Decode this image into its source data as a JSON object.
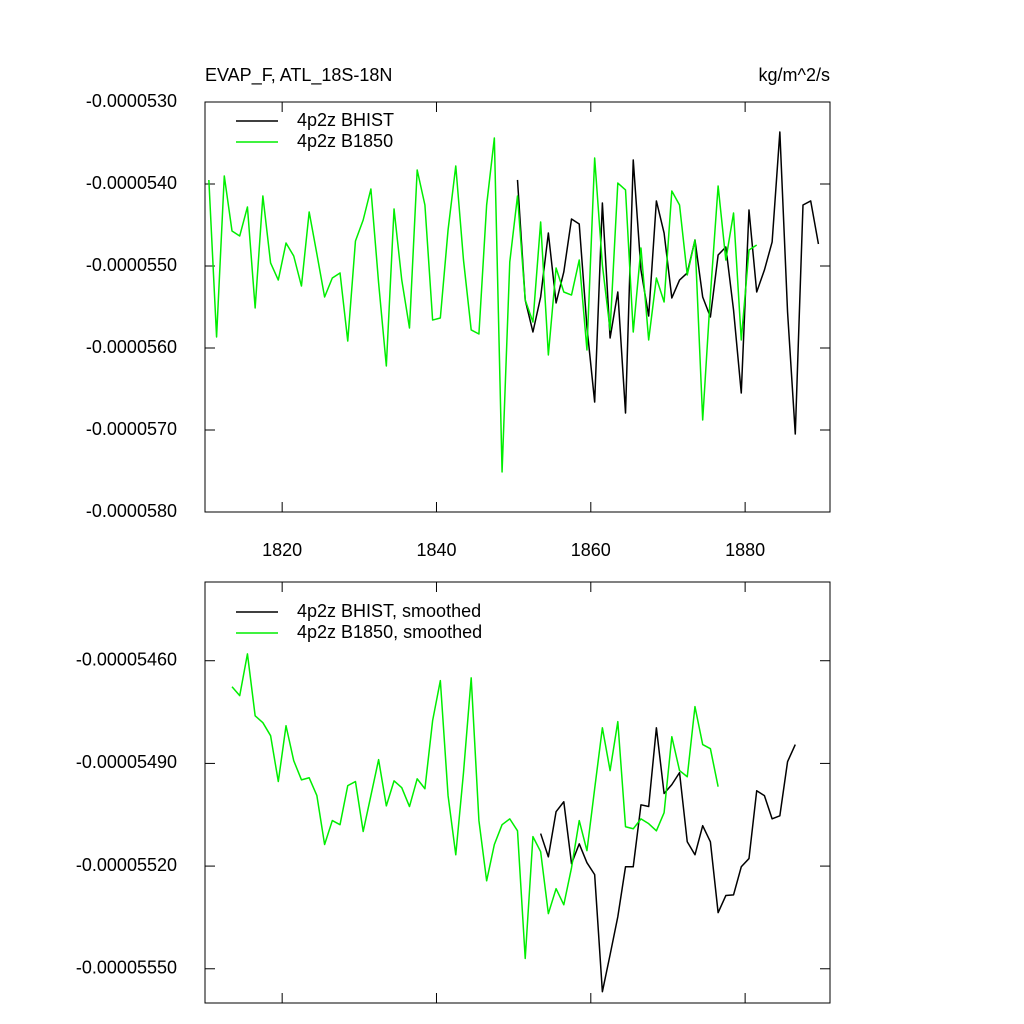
{
  "chart_data": [
    {
      "type": "line",
      "title": "EVAP_F, ATL_18S-18N",
      "units": "kg/m^2/s",
      "xlim": [
        1810,
        1891
      ],
      "xticks": [
        1820,
        1840,
        1860,
        1880
      ],
      "ylim": [
        -5.8e-05,
        -5.3e-05
      ],
      "yticks": [
        {
          "value": -5.3e-05,
          "label": "-0.0000530"
        },
        {
          "value": -5.4e-05,
          "label": "-0.0000540"
        },
        {
          "value": -5.5e-05,
          "label": "-0.0000550"
        },
        {
          "value": -5.6e-05,
          "label": "-0.0000560"
        },
        {
          "value": -5.7e-05,
          "label": "-0.0000570"
        },
        {
          "value": -5.8e-05,
          "label": "-0.0000580"
        }
      ],
      "series": [
        {
          "name": "4p2z BHIST",
          "color": "#000000",
          "x": [
            1850.5,
            1851.5,
            1852.5,
            1853.5,
            1854.5,
            1855.5,
            1856.5,
            1857.5,
            1858.5,
            1859.5,
            1860.5,
            1861.5,
            1862.5,
            1863.5,
            1864.5,
            1865.5,
            1866.5,
            1867.5,
            1868.5,
            1869.5,
            1870.5,
            1871.5,
            1872.5,
            1873.5,
            1874.5,
            1875.5,
            1876.5,
            1877.5,
            1878.5,
            1879.5,
            1880.5,
            1881.5,
            1882.5,
            1883.5,
            1884.5,
            1885.5,
            1886.5,
            1887.5,
            1888.5,
            1889.5
          ],
          "values": [
            -5.3951e-05,
            -5.5415e-05,
            -5.5805e-05,
            -5.5378e-05,
            -5.4598e-05,
            -5.5451e-05,
            -5.5073e-05,
            -5.4427e-05,
            -5.4488e-05,
            -5.5744e-05,
            -5.6659e-05,
            -5.4232e-05,
            -5.5878e-05,
            -5.5317e-05,
            -5.6793e-05,
            -5.3707e-05,
            -5.5049e-05,
            -5.561e-05,
            -5.4207e-05,
            -5.4598e-05,
            -5.539e-05,
            -5.5171e-05,
            -5.5085e-05,
            -5.4683e-05,
            -5.5378e-05,
            -5.5622e-05,
            -5.4866e-05,
            -5.4768e-05,
            -5.5537e-05,
            -5.6549e-05,
            -5.4317e-05,
            -5.5317e-05,
            -5.5049e-05,
            -5.4707e-05,
            -5.3366e-05,
            -5.5561e-05,
            -5.7049e-05,
            -5.4256e-05,
            -5.4207e-05,
            -5.4732e-05
          ]
        },
        {
          "name": "4p2z B1850",
          "color": "#00ee00",
          "x": [
            1810.5,
            1811.5,
            1812.5,
            1813.5,
            1814.5,
            1815.5,
            1816.5,
            1817.5,
            1818.5,
            1819.5,
            1820.5,
            1821.5,
            1822.5,
            1823.5,
            1824.5,
            1825.5,
            1826.5,
            1827.5,
            1828.5,
            1829.5,
            1830.5,
            1831.5,
            1832.5,
            1833.5,
            1834.5,
            1835.5,
            1836.5,
            1837.5,
            1838.5,
            1839.5,
            1840.5,
            1841.5,
            1842.5,
            1843.5,
            1844.5,
            1845.5,
            1846.5,
            1847.5,
            1848.5,
            1849.5,
            1850.5,
            1851.5,
            1852.5,
            1853.5,
            1854.5,
            1855.5,
            1856.5,
            1857.5,
            1858.5,
            1859.5,
            1860.5,
            1861.5,
            1862.5,
            1863.5,
            1864.5,
            1865.5,
            1866.5,
            1867.5,
            1868.5,
            1869.5,
            1870.5,
            1871.5,
            1872.5,
            1873.5,
            1874.5,
            1875.5,
            1876.5,
            1877.5,
            1878.5,
            1879.5,
            1880.5,
            1881.5
          ],
          "values": [
            -5.3951e-05,
            -5.5866e-05,
            -5.3902e-05,
            -5.4573e-05,
            -5.4634e-05,
            -5.428e-05,
            -5.5512e-05,
            -5.4146e-05,
            -5.4963e-05,
            -5.5171e-05,
            -5.472e-05,
            -5.4878e-05,
            -5.5244e-05,
            -5.4341e-05,
            -5.4854e-05,
            -5.5378e-05,
            -5.5146e-05,
            -5.5085e-05,
            -5.5915e-05,
            -5.4695e-05,
            -5.4439e-05,
            -5.4061e-05,
            -5.5207e-05,
            -5.6219e-05,
            -5.4305e-05,
            -5.5171e-05,
            -5.5756e-05,
            -5.3829e-05,
            -5.4256e-05,
            -5.5659e-05,
            -5.5634e-05,
            -5.4561e-05,
            -5.378e-05,
            -5.4927e-05,
            -5.578e-05,
            -5.5829e-05,
            -5.4256e-05,
            -5.3439e-05,
            -5.7512e-05,
            -5.4951e-05,
            -5.4146e-05,
            -5.5415e-05,
            -5.5683e-05,
            -5.4463e-05,
            -5.6085e-05,
            -5.5024e-05,
            -5.5317e-05,
            -5.5354e-05,
            -5.4927e-05,
            -5.6024e-05,
            -5.3683e-05,
            -5.4988e-05,
            -5.578e-05,
            -5.3988e-05,
            -5.4073e-05,
            -5.5805e-05,
            -5.478e-05,
            -5.5902e-05,
            -5.5146e-05,
            -5.5439e-05,
            -5.4085e-05,
            -5.4256e-05,
            -5.511e-05,
            -5.4683e-05,
            -5.6878e-05,
            -5.5354e-05,
            -5.4024e-05,
            -5.4927e-05,
            -5.4354e-05,
            -5.5902e-05,
            -5.4805e-05,
            -5.4744e-05
          ]
        }
      ]
    },
    {
      "type": "line",
      "xlim": [
        1810,
        1891
      ],
      "xticks": [
        1820,
        1840,
        1860,
        1880
      ],
      "ylim": [
        -5.56e-05,
        -5.437e-05
      ],
      "yticks": [
        {
          "value": -5.46e-05,
          "label": "-0.00005460"
        },
        {
          "value": -5.49e-05,
          "label": "-0.00005490"
        },
        {
          "value": -5.52e-05,
          "label": "-0.00005520"
        },
        {
          "value": -5.55e-05,
          "label": "-0.00005550"
        }
      ],
      "series": [
        {
          "name": "4p2z BHIST, smoothed",
          "color": "#000000",
          "x": [
            1853.5,
            1854.5,
            1855.5,
            1856.5,
            1857.5,
            1858.5,
            1859.5,
            1860.5,
            1861.5,
            1862.5,
            1863.5,
            1864.5,
            1865.5,
            1866.5,
            1867.5,
            1868.5,
            1869.5,
            1870.5,
            1871.5,
            1872.5,
            1873.5,
            1874.5,
            1875.5,
            1876.5,
            1877.5,
            1878.5,
            1879.5,
            1880.5,
            1881.5,
            1882.5,
            1883.5,
            1884.5,
            1885.5,
            1886.5
          ],
          "values": [
            -5.5105e-05,
            -5.5173e-05,
            -5.5041e-05,
            -5.5012e-05,
            -5.5193e-05,
            -5.5135e-05,
            -5.519e-05,
            -5.5225e-05,
            -5.5567e-05,
            -5.5459e-05,
            -5.5348e-05,
            -5.5202e-05,
            -5.5202e-05,
            -5.5021e-05,
            -5.5026e-05,
            -5.4796e-05,
            -5.4988e-05,
            -5.4962e-05,
            -5.4927e-05,
            -5.5129e-05,
            -5.5167e-05,
            -5.5082e-05,
            -5.5129e-05,
            -5.5336e-05,
            -5.5286e-05,
            -5.5284e-05,
            -5.5202e-05,
            -5.5178e-05,
            -5.498e-05,
            -5.4994e-05,
            -5.5062e-05,
            -5.5053e-05,
            -5.4895e-05,
            -5.4845e-05
          ]
        },
        {
          "name": "4p2z B1850, smoothed",
          "color": "#00ee00",
          "x": [
            1813.5,
            1814.5,
            1815.5,
            1816.5,
            1817.5,
            1818.5,
            1819.5,
            1820.5,
            1821.5,
            1822.5,
            1823.5,
            1824.5,
            1825.5,
            1826.5,
            1827.5,
            1828.5,
            1829.5,
            1830.5,
            1831.5,
            1832.5,
            1833.5,
            1834.5,
            1835.5,
            1836.5,
            1837.5,
            1838.5,
            1839.5,
            1840.5,
            1841.5,
            1842.5,
            1843.5,
            1844.5,
            1845.5,
            1846.5,
            1847.5,
            1848.5,
            1849.5,
            1850.5,
            1851.5,
            1852.5,
            1853.5,
            1854.5,
            1855.5,
            1856.5,
            1857.5,
            1858.5,
            1859.5,
            1860.5,
            1861.5,
            1862.5,
            1863.5,
            1864.5,
            1865.5,
            1866.5,
            1867.5,
            1868.5,
            1869.5,
            1870.5,
            1871.5,
            1872.5,
            1873.5,
            1874.5,
            1875.5,
            1876.5
          ],
          "values": [
            -5.4676e-05,
            -5.4702e-05,
            -5.458e-05,
            -5.4761e-05,
            -5.4781e-05,
            -5.4819e-05,
            -5.4953e-05,
            -5.479e-05,
            -5.4892e-05,
            -5.4948e-05,
            -5.4942e-05,
            -5.4994e-05,
            -5.5137e-05,
            -5.5067e-05,
            -5.5079e-05,
            -5.4965e-05,
            -5.4953e-05,
            -5.5099e-05,
            -5.4994e-05,
            -5.4889e-05,
            -5.5024e-05,
            -5.4951e-05,
            -5.4971e-05,
            -5.5026e-05,
            -5.4945e-05,
            -5.4974e-05,
            -5.4775e-05,
            -5.4658e-05,
            -5.4994e-05,
            -5.5167e-05,
            -5.4927e-05,
            -5.465e-05,
            -5.5067e-05,
            -5.5243e-05,
            -5.5137e-05,
            -5.5079e-05,
            -5.5062e-05,
            -5.5097e-05,
            -5.547e-05,
            -5.5114e-05,
            -5.5158e-05,
            -5.5339e-05,
            -5.5266e-05,
            -5.5313e-05,
            -5.5205e-05,
            -5.5067e-05,
            -5.5155e-05,
            -5.4974e-05,
            -5.4796e-05,
            -5.4921e-05,
            -5.4778e-05,
            -5.5085e-05,
            -5.5091e-05,
            -5.5062e-05,
            -5.5076e-05,
            -5.5097e-05,
            -5.5044e-05,
            -5.4822e-05,
            -5.4921e-05,
            -5.4939e-05,
            -5.4734e-05,
            -5.4845e-05,
            -5.4857e-05,
            -5.4968e-05
          ]
        }
      ]
    }
  ]
}
